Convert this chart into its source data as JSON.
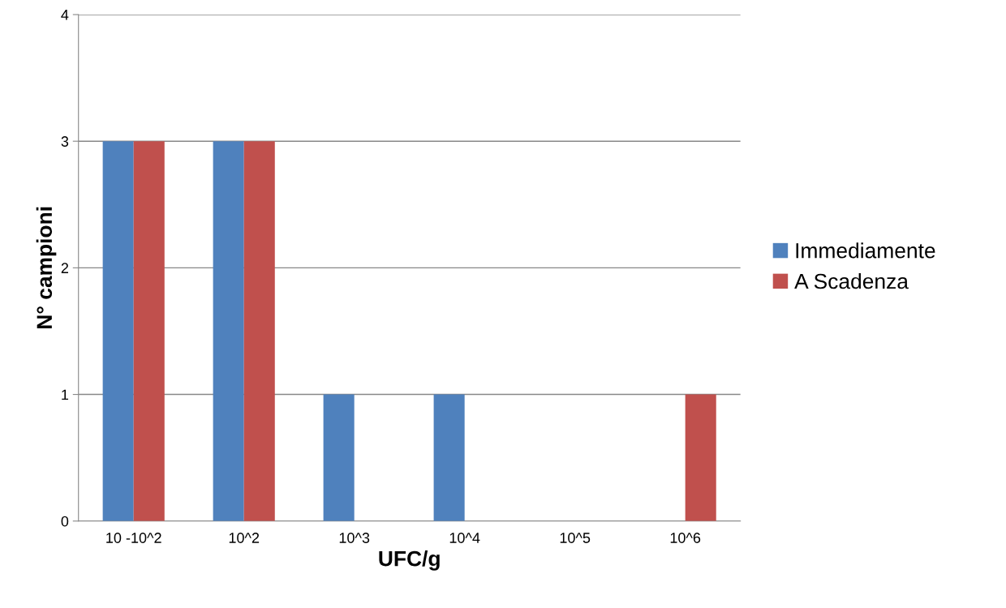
{
  "chart_data": {
    "type": "bar",
    "xlabel": "UFC/g",
    "ylabel": "N° campioni",
    "categories": [
      "10 -10^2",
      "10^2",
      "10^3",
      "10^4",
      "10^5",
      "10^6"
    ],
    "series": [
      {
        "name": "Immediamente",
        "color": "#4f81bd",
        "values": [
          3,
          3,
          1,
          1,
          0,
          0
        ]
      },
      {
        "name": "A Scadenza",
        "color": "#c0504d",
        "values": [
          3,
          3,
          0,
          0,
          0,
          1
        ]
      }
    ],
    "ylim": [
      0,
      4
    ],
    "yticks": [
      0,
      1,
      2,
      3,
      4
    ],
    "grid": "y",
    "legend": "right"
  }
}
